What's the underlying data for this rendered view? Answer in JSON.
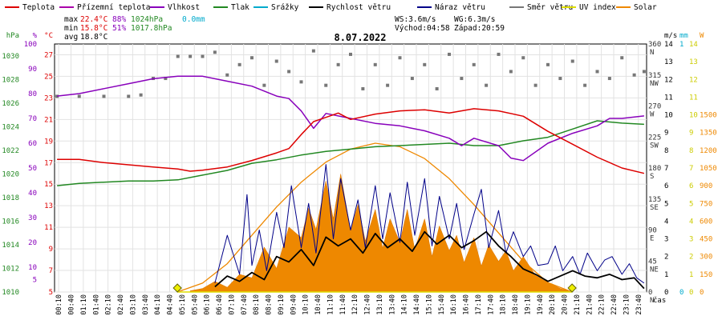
{
  "chart_data": {
    "type": "line",
    "title": "8.07.2022",
    "legend": [
      {
        "label": "Teplota",
        "color": "#dd0000"
      },
      {
        "label": "Přízemní teplota",
        "color": "#aa00aa"
      },
      {
        "label": "Vlhkost",
        "color": "#8800bb"
      },
      {
        "label": "Tlak",
        "color": "#228822"
      },
      {
        "label": "Srážky",
        "color": "#00aacc"
      },
      {
        "label": "Rychlost větru",
        "color": "#000000"
      },
      {
        "label": "Náraz větru",
        "color": "#000088"
      },
      {
        "label": "Směr větru",
        "color": "#777777"
      },
      {
        "label": "UV index",
        "color": "#dddd00"
      },
      {
        "label": "Solar",
        "color": "#ee8800"
      }
    ],
    "stats": {
      "max": {
        "label": "max",
        "temp": "22.4°C",
        "hum": "88%",
        "press": "1024hPa",
        "rain": "0.0mm"
      },
      "min": {
        "label": "min",
        "temp": "15.8°C",
        "hum": "51%",
        "press": "1017.8hPa"
      },
      "avg": {
        "label": "avg",
        "temp": "18.8°C"
      }
    },
    "info": {
      "ws": "WS:3.6m/s",
      "wg": "WG:6.3m/s",
      "sunrise": "Východ:04:58",
      "sunset": "Západ:20:59"
    },
    "axes": {
      "hPa": {
        "title": "hPa",
        "color": "#228822",
        "ticks": [
          "1010",
          "1012",
          "1014",
          "1016",
          "1018",
          "1020",
          "1022",
          "1024",
          "1026",
          "1028",
          "1030"
        ],
        "range": [
          1010,
          1031
        ]
      },
      "pct": {
        "title": "%",
        "color": "#8800bb",
        "ticks": [
          "5",
          "10",
          "20",
          "30",
          "40",
          "50",
          "60",
          "70",
          "80",
          "90",
          "100"
        ],
        "range": [
          0,
          100
        ]
      },
      "degC": {
        "title": "°C",
        "color": "#dd0000",
        "ticks": [
          "5",
          "7",
          "9",
          "11",
          "13",
          "15",
          "17",
          "19",
          "21",
          "23",
          "25",
          "27"
        ],
        "range": [
          5,
          28
        ]
      },
      "dir": {
        "title": "",
        "ticks": [
          "0",
          "45",
          "90",
          "135",
          "180",
          "225",
          "270",
          "315",
          "360"
        ],
        "labels": [
          "N",
          "NE",
          "E",
          "SE",
          "S",
          "SW",
          "W",
          "NW",
          "N"
        ],
        "range": [
          0,
          360
        ]
      },
      "ms": {
        "title": "m/s",
        "ticks": [
          "0",
          "1",
          "2",
          "3",
          "4",
          "5",
          "6",
          "7",
          "8",
          "9",
          "10",
          "11",
          "12",
          "13",
          "14"
        ],
        "range": [
          0,
          14
        ]
      },
      "mm": {
        "title": "mm",
        "color": "#00aacc",
        "ticks": [
          "0",
          "1"
        ],
        "range": [
          0,
          1
        ]
      },
      "uv": {
        "title": "",
        "color": "#dddd00",
        "ticks": [
          "0",
          "1",
          "2",
          "3",
          "4",
          "5",
          "6",
          "7",
          "8",
          "9",
          "10",
          "11",
          "12",
          "13",
          "14"
        ],
        "range": [
          0,
          14
        ]
      },
      "w": {
        "title": "W",
        "color": "#ee8800",
        "ticks": [
          "0",
          "150",
          "300",
          "450",
          "600",
          "750",
          "900",
          "1050",
          "1200",
          "1350",
          "1500"
        ],
        "range": [
          0,
          2100
        ]
      },
      "time": {
        "label": "čas",
        "ticks": [
          "00:10",
          "00:40",
          "01:10",
          "01:40",
          "02:10",
          "02:40",
          "03:10",
          "03:40",
          "04:10",
          "04:40",
          "05:10",
          "05:40",
          "06:10",
          "06:40",
          "07:10",
          "07:40",
          "08:10",
          "08:40",
          "09:10",
          "09:40",
          "10:10",
          "10:40",
          "11:10",
          "11:40",
          "12:10",
          "12:40",
          "13:10",
          "13:40",
          "14:10",
          "14:40",
          "15:10",
          "15:40",
          "16:10",
          "16:40",
          "17:10",
          "17:40",
          "18:10",
          "18:40",
          "19:10",
          "19:40",
          "20:10",
          "20:40",
          "21:10",
          "21:40",
          "22:10",
          "22:40",
          "23:10",
          "23:40"
        ]
      }
    },
    "series": {
      "teplota": {
        "x": [
          0.1,
          1,
          2,
          3,
          4,
          5,
          5.5,
          6,
          7,
          8,
          9,
          9.5,
          10,
          10.5,
          11,
          11.5,
          12,
          13,
          14,
          15,
          16,
          17,
          18,
          19,
          20,
          21,
          22,
          23,
          23.9
        ],
        "y": [
          17.3,
          17.3,
          17.0,
          16.8,
          16.6,
          16.4,
          16.2,
          16.3,
          16.6,
          17.2,
          17.9,
          18.3,
          19.6,
          20.8,
          21.2,
          21.6,
          21.0,
          21.5,
          21.8,
          21.9,
          21.6,
          22.0,
          21.8,
          21.3,
          19.9,
          18.7,
          17.5,
          16.5,
          16.0
        ]
      },
      "vlhkost": {
        "x": [
          0.1,
          1,
          2,
          3,
          4,
          5,
          6,
          7,
          8,
          9,
          9.5,
          10,
          10.5,
          11,
          12,
          13,
          14,
          15,
          16,
          16.5,
          17,
          18,
          18.5,
          19,
          20,
          21,
          22,
          22.5,
          23,
          23.9
        ],
        "y": [
          79,
          80,
          82,
          84,
          86,
          87,
          87,
          85,
          83,
          79,
          78,
          73,
          66,
          72,
          70,
          68,
          67,
          65,
          62,
          59,
          62,
          59,
          54,
          53,
          60,
          64,
          67,
          70,
          70,
          71
        ]
      },
      "tlak": {
        "x": [
          0.1,
          1,
          2,
          3,
          4,
          5,
          6,
          7,
          8,
          9,
          10,
          11,
          12,
          13,
          14,
          15,
          16,
          17,
          18,
          19,
          20,
          21,
          22,
          23,
          23.9
        ],
        "y": [
          1019.0,
          1019.2,
          1019.3,
          1019.4,
          1019.4,
          1019.5,
          1019.9,
          1020.3,
          1020.9,
          1021.2,
          1021.6,
          1021.9,
          1022.1,
          1022.3,
          1022.4,
          1022.5,
          1022.6,
          1022.4,
          1022.4,
          1022.8,
          1023.1,
          1023.8,
          1024.5,
          1024.3,
          1024.2
        ]
      },
      "solar_clear": {
        "x": [
          4.98,
          6,
          7,
          8,
          9,
          10,
          11,
          12,
          13,
          14,
          15,
          16,
          17,
          18,
          19,
          20,
          20.98
        ],
        "y": [
          0,
          75,
          240,
          480,
          720,
          930,
          1100,
          1210,
          1260,
          1230,
          1130,
          960,
          740,
          500,
          260,
          80,
          0
        ]
      },
      "solar": {
        "x": [
          5.5,
          6,
          6.5,
          7,
          7.5,
          8,
          8.5,
          9,
          9.5,
          10,
          10.3,
          10.6,
          11,
          11.3,
          11.6,
          12,
          12.3,
          12.6,
          13,
          13.3,
          13.6,
          14,
          14.3,
          14.6,
          15,
          15.3,
          15.6,
          16,
          16.3,
          16.6,
          17,
          17.3,
          17.6,
          18,
          18.3,
          18.6,
          19,
          19.5,
          20,
          20.5,
          20.9
        ],
        "y": [
          10,
          30,
          90,
          40,
          150,
          120,
          380,
          200,
          550,
          460,
          710,
          530,
          940,
          620,
          1000,
          520,
          740,
          430,
          700,
          370,
          620,
          420,
          700,
          360,
          620,
          300,
          560,
          350,
          480,
          250,
          460,
          220,
          400,
          260,
          350,
          180,
          300,
          140,
          80,
          30,
          5
        ]
      },
      "wind_speed": {
        "x": [
          6.5,
          7,
          7.5,
          8,
          8.5,
          9,
          9.5,
          10,
          10.5,
          11,
          11.5,
          12,
          12.5,
          13,
          13.5,
          14,
          14.5,
          15,
          15.5,
          16,
          16.5,
          17,
          17.5,
          18,
          18.5,
          19,
          19.5,
          20,
          20.5,
          21,
          21.5,
          22,
          22.5,
          23,
          23.5,
          23.9
        ],
        "y": [
          0.3,
          0.9,
          0.6,
          1.1,
          0.7,
          2.0,
          1.7,
          2.4,
          1.5,
          3.1,
          2.6,
          3.0,
          2.2,
          3.3,
          2.5,
          3.0,
          2.3,
          3.4,
          2.7,
          3.2,
          2.5,
          2.9,
          3.4,
          2.6,
          2.0,
          1.3,
          1.0,
          0.6,
          0.9,
          1.2,
          0.9,
          0.8,
          1.0,
          0.7,
          0.8,
          0.2
        ]
      },
      "wind_gust": {
        "x": [
          6.5,
          7,
          7.5,
          7.8,
          8,
          8.3,
          8.6,
          9,
          9.3,
          9.6,
          10,
          10.3,
          10.6,
          11,
          11.3,
          11.6,
          12,
          12.3,
          12.6,
          13,
          13.3,
          13.6,
          14,
          14.3,
          14.6,
          15,
          15.3,
          15.6,
          16,
          16.3,
          16.6,
          17,
          17.3,
          17.6,
          18,
          18.3,
          18.6,
          19,
          19.3,
          19.6,
          20,
          20.3,
          20.6,
          21,
          21.3,
          21.6,
          22,
          22.3,
          22.6,
          23,
          23.3,
          23.6,
          23.9
        ],
        "y": [
          0.5,
          3.2,
          1.0,
          5.5,
          1.5,
          3.5,
          1.2,
          4.5,
          2.5,
          6.0,
          2.5,
          5.0,
          2.2,
          7.2,
          3.0,
          6.4,
          3.5,
          5.2,
          2.5,
          6.0,
          3.0,
          5.6,
          2.8,
          6.2,
          3.2,
          6.4,
          2.6,
          5.4,
          3.0,
          5.0,
          2.4,
          4.4,
          5.8,
          2.5,
          4.6,
          2.2,
          3.4,
          2.0,
          2.6,
          1.5,
          1.6,
          2.6,
          1.2,
          2.0,
          1.0,
          2.2,
          1.2,
          1.8,
          2.0,
          1.0,
          1.6,
          0.8,
          0.5
        ]
      },
      "wind_dir": {
        "x": [
          0.1,
          1,
          2,
          3,
          3.5,
          4,
          4.5,
          5,
          5.5,
          6,
          6.5,
          7,
          7.5,
          8,
          8.5,
          9,
          9.5,
          10,
          10.5,
          11,
          11.5,
          12,
          12.5,
          13,
          13.5,
          14,
          14.5,
          15,
          15.5,
          16,
          16.5,
          17,
          17.5,
          18,
          18.5,
          19,
          19.5,
          20,
          20.5,
          21,
          21.5,
          22,
          22.5,
          23,
          23.5,
          23.9
        ],
        "y": [
          284,
          284,
          284,
          284,
          286,
          310,
          310,
          342,
          342,
          342,
          348,
          315,
          330,
          340,
          300,
          335,
          320,
          305,
          350,
          300,
          330,
          345,
          295,
          330,
          300,
          340,
          310,
          330,
          295,
          345,
          310,
          330,
          300,
          345,
          320,
          340,
          300,
          330,
          310,
          335,
          300,
          320,
          310,
          340,
          315,
          320
        ]
      },
      "uv": {
        "x": [
          4.98,
          20.98
        ],
        "y": [
          0,
          0
        ]
      }
    }
  }
}
